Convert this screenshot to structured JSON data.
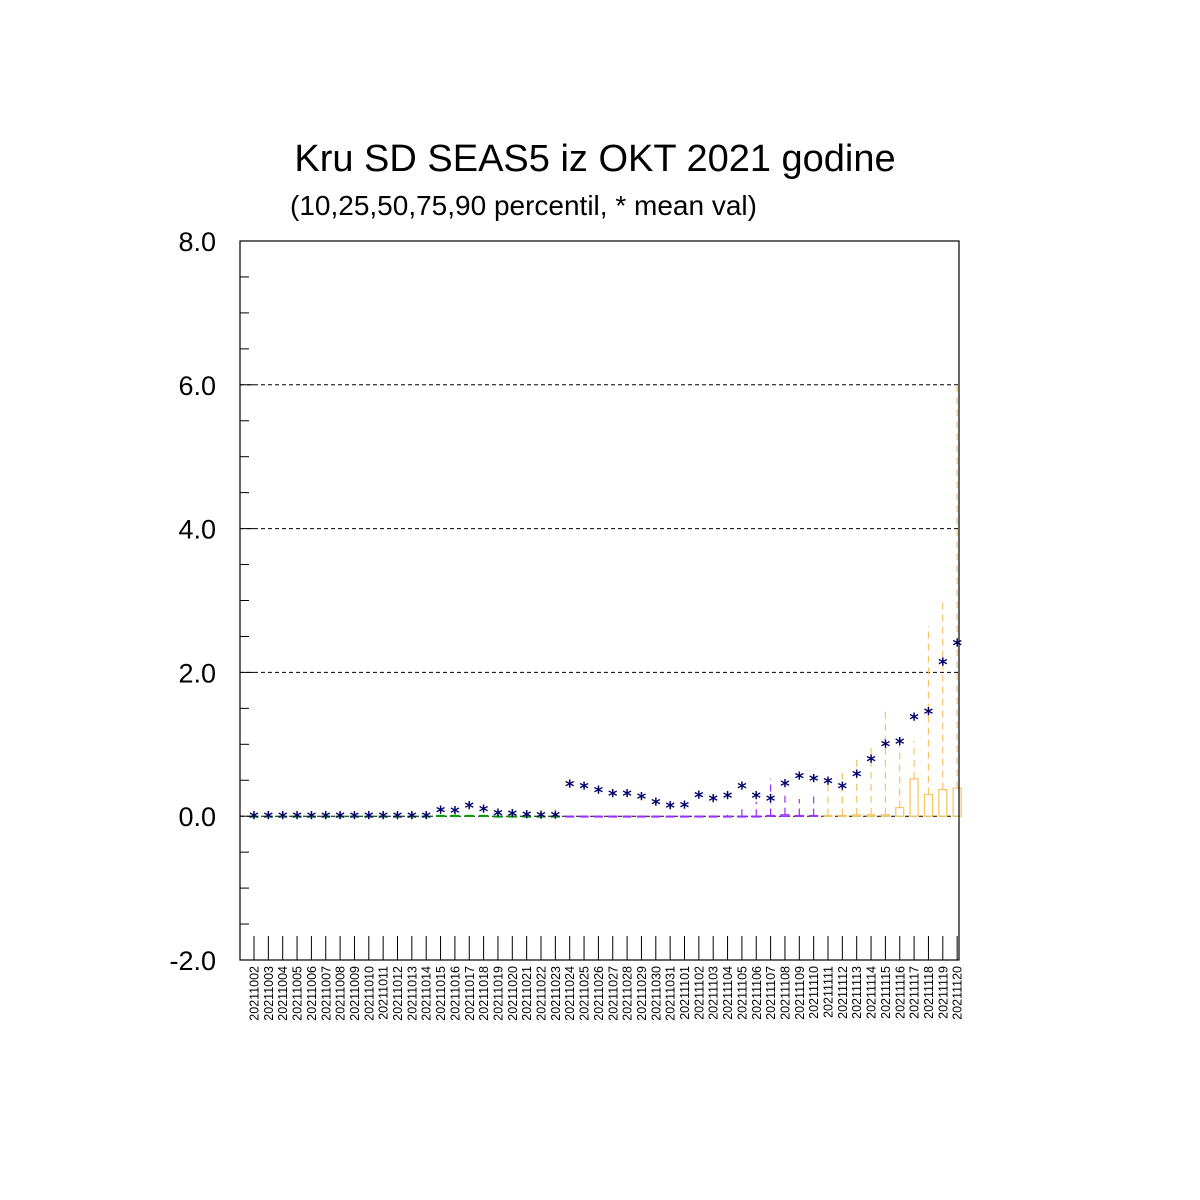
{
  "chart_data": {
    "type": "box",
    "title": "Kru SD SEAS5 iz OKT 2021 godine",
    "subtitle": "(10,25,50,75,90 percentil, * mean val)",
    "xlabel": "",
    "ylabel": "",
    "ylim": [
      -2.0,
      8.0
    ],
    "yticks": [
      "-2.0",
      "0.0",
      "2.0",
      "4.0",
      "6.0",
      "8.0"
    ],
    "grid": "horizontal dashed",
    "categories": [
      "20211002",
      "20211003",
      "20211004",
      "20211005",
      "20211006",
      "20211007",
      "20211008",
      "20211009",
      "20211010",
      "20211011",
      "20211012",
      "20211013",
      "20211014",
      "20211015",
      "20211016",
      "20211017",
      "20211018",
      "20211019",
      "20211020",
      "20211021",
      "20211022",
      "20211023",
      "20211024",
      "20211025",
      "20211026",
      "20211027",
      "20211028",
      "20211029",
      "20211030",
      "20211031",
      "20211101",
      "20211102",
      "20211103",
      "20211104",
      "20211105",
      "20211106",
      "20211107",
      "20211108",
      "20211109",
      "20211110",
      "20211111",
      "20211112",
      "20211113",
      "20211114",
      "20211115",
      "20211116",
      "20211117",
      "20211118",
      "20211119",
      "20211120"
    ],
    "mean": [
      0,
      0,
      0,
      0,
      0,
      0,
      0,
      0,
      0,
      0,
      0,
      0,
      0,
      0.08,
      0.07,
      0.14,
      0.09,
      0.04,
      0.03,
      0.02,
      0.01,
      0.01,
      0.44,
      0.41,
      0.36,
      0.31,
      0.31,
      0.27,
      0.19,
      0.14,
      0.15,
      0.29,
      0.24,
      0.28,
      0.41,
      0.28,
      0.24,
      0.45,
      0.55,
      0.52,
      0.48,
      0.41,
      0.58,
      0.79,
      1.0,
      1.03,
      1.37,
      1.45,
      2.14,
      2.4
    ],
    "p10": [
      0,
      0,
      0,
      0,
      0,
      0,
      0,
      0,
      0,
      0,
      0,
      0,
      0,
      0,
      0,
      0,
      0,
      0,
      0,
      0,
      0,
      0,
      0,
      0,
      0,
      0,
      0,
      0,
      0,
      0,
      0,
      0,
      0,
      0,
      0,
      0,
      0,
      0,
      0,
      0,
      0,
      0,
      0,
      0,
      0,
      0,
      0,
      0,
      0,
      0
    ],
    "p25": [
      0,
      0,
      0,
      0,
      0,
      0,
      0,
      0,
      0,
      0,
      0,
      0,
      0,
      0,
      0,
      0,
      0,
      0,
      0,
      0,
      0,
      0,
      0,
      0,
      0,
      0,
      0,
      0,
      0,
      0,
      0,
      0,
      0,
      0,
      0,
      0,
      0,
      0,
      0,
      0,
      0,
      0,
      0,
      0,
      0,
      0,
      0,
      0,
      0,
      0
    ],
    "p50": [
      0,
      0,
      0,
      0,
      0,
      0,
      0,
      0,
      0,
      0,
      0,
      0,
      0,
      0,
      0,
      0,
      0,
      0,
      0,
      0,
      0,
      0,
      0,
      0,
      0,
      0,
      0,
      0,
      0,
      0,
      0,
      0,
      0,
      0,
      0,
      0,
      0,
      0,
      0,
      0,
      0,
      0,
      0,
      0,
      0,
      0,
      0,
      0,
      0,
      0
    ],
    "p75": [
      0,
      0,
      0,
      0,
      0,
      0,
      0,
      0,
      0,
      0,
      0,
      0,
      0,
      0.01,
      0.01,
      0.01,
      0.01,
      0,
      0,
      0,
      0,
      0,
      0,
      0,
      0,
      0,
      0,
      0,
      0,
      0,
      0,
      0,
      0,
      0,
      0,
      0,
      0.01,
      0.02,
      0.01,
      0.01,
      0.01,
      0.01,
      0.02,
      0.02,
      0.02,
      0.12,
      0.52,
      0.3,
      0.37,
      0.39
    ],
    "p90": [
      0,
      0,
      0,
      0,
      0,
      0,
      0,
      0,
      0,
      0,
      0,
      0,
      0,
      0.02,
      0.02,
      0.02,
      0.02,
      0,
      0,
      0,
      0,
      0,
      0,
      0,
      0,
      0,
      0,
      0,
      0,
      0,
      0,
      0,
      0.01,
      0.02,
      0.12,
      0.2,
      0.52,
      0.32,
      0.24,
      0.33,
      0.5,
      0.6,
      0.85,
      0.95,
      1.5,
      1.08,
      1.05,
      2.65,
      2.98,
      6.05
    ],
    "colors": {
      "mean_marker": "#00006b",
      "october_boxes": "#00a000",
      "early_november_boxes": "#9b30ff",
      "late_november_boxes": "#f5c560",
      "grid": "#000000"
    }
  }
}
